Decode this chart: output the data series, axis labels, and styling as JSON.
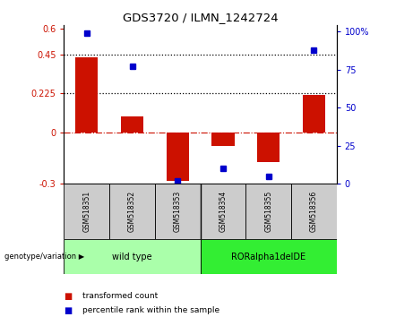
{
  "title": "GDS3720 / ILMN_1242724",
  "samples": [
    "GSM518351",
    "GSM518352",
    "GSM518353",
    "GSM518354",
    "GSM518355",
    "GSM518356"
  ],
  "bar_values": [
    0.437,
    0.09,
    -0.285,
    -0.082,
    -0.175,
    0.218
  ],
  "percentile_values": [
    99,
    77,
    2,
    10,
    5,
    88
  ],
  "bar_color": "#cc1100",
  "dot_color": "#0000cc",
  "ylim_left": [
    -0.3,
    0.62
  ],
  "ylim_right": [
    0,
    104.0
  ],
  "yticks_left": [
    -0.3,
    0,
    0.225,
    0.45,
    0.6
  ],
  "ytick_labels_left": [
    "-0.3",
    "0",
    "0.225",
    "0.45",
    "0.6"
  ],
  "yticks_right": [
    0,
    25,
    50,
    75,
    100
  ],
  "ytick_labels_right": [
    "0",
    "25",
    "50",
    "75",
    "100%"
  ],
  "hlines_dotted": [
    0.225,
    0.45
  ],
  "hline_dashed_val": 0,
  "groups": [
    {
      "label": "wild type",
      "indices": [
        0,
        1,
        2
      ],
      "color": "#aaffaa"
    },
    {
      "label": "RORalpha1delDE",
      "indices": [
        3,
        4,
        5
      ],
      "color": "#33ee33"
    }
  ],
  "group_label_text": "genotype/variation",
  "legend_entries": [
    "transformed count",
    "percentile rank within the sample"
  ],
  "legend_colors": [
    "#cc1100",
    "#0000cc"
  ],
  "background_color": "#ffffff",
  "sample_box_color": "#cccccc",
  "left_yaxis_color": "#cc1100",
  "right_yaxis_color": "#0000cc",
  "bar_width": 0.5
}
